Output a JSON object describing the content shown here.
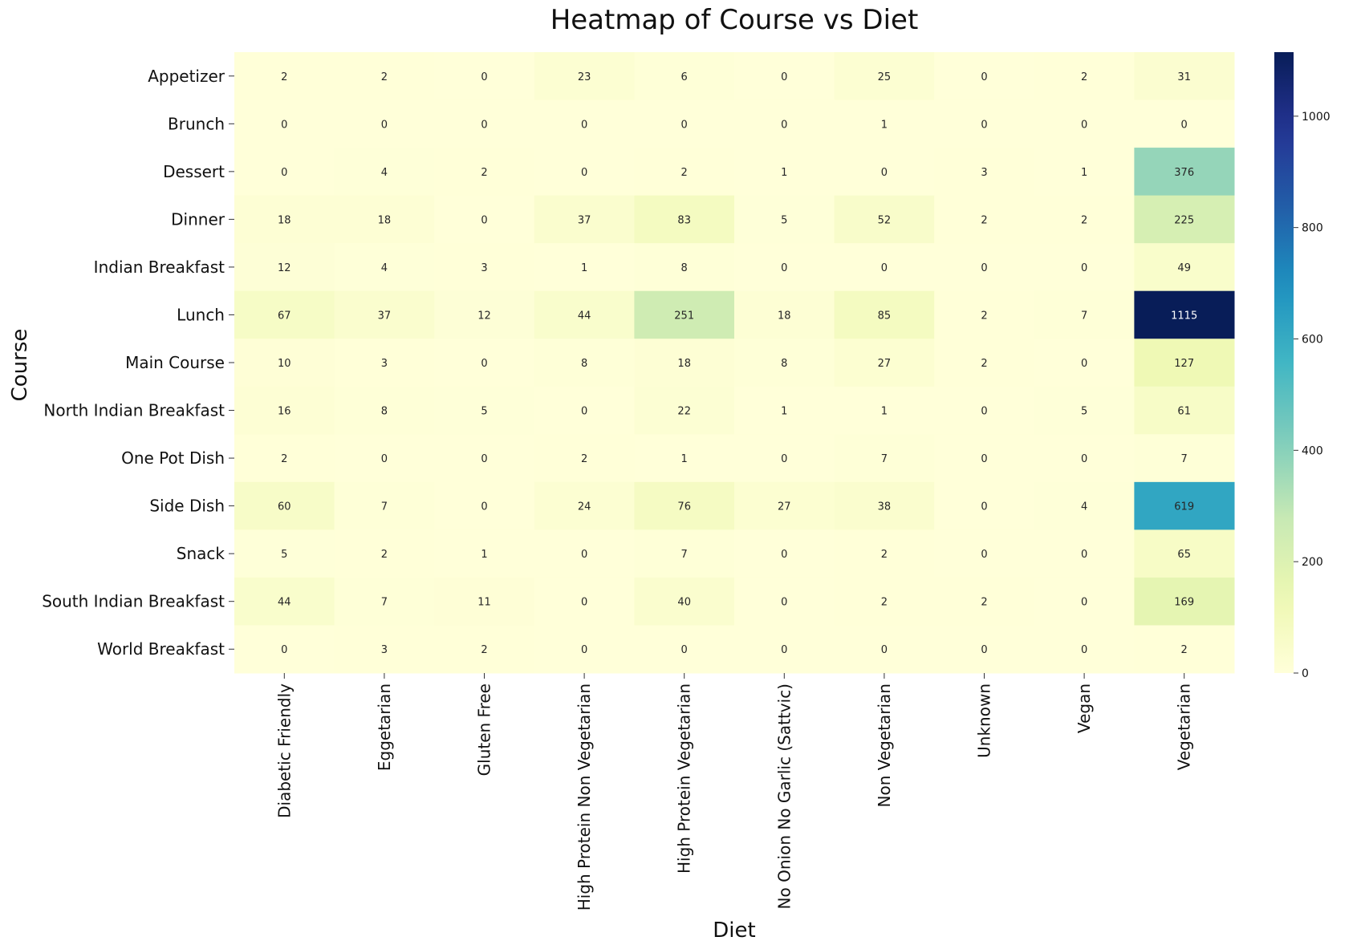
{
  "chart_data": {
    "type": "heatmap",
    "title": "Heatmap of Course vs Diet",
    "xlabel": "Diet",
    "ylabel": "Course",
    "x_categories": [
      "Diabetic Friendly",
      "Eggetarian",
      "Gluten Free",
      "High Protein Non Vegetarian",
      "High Protein Vegetarian",
      "No Onion No Garlic (Sattvic)",
      "Non Vegetarian",
      "Unknown",
      "Vegan",
      "Vegetarian"
    ],
    "y_categories": [
      "Appetizer",
      "Brunch",
      "Dessert",
      "Dinner",
      "Indian Breakfast",
      "Lunch",
      "Main Course",
      "North Indian Breakfast",
      "One Pot Dish",
      "Side Dish",
      "Snack",
      "South Indian Breakfast",
      "World Breakfast"
    ],
    "values": [
      [
        2,
        2,
        0,
        23,
        6,
        0,
        25,
        0,
        2,
        31
      ],
      [
        0,
        0,
        0,
        0,
        0,
        0,
        1,
        0,
        0,
        0
      ],
      [
        0,
        4,
        2,
        0,
        2,
        1,
        0,
        3,
        1,
        376
      ],
      [
        18,
        18,
        0,
        37,
        83,
        5,
        52,
        2,
        2,
        225
      ],
      [
        12,
        4,
        3,
        1,
        8,
        0,
        0,
        0,
        0,
        49
      ],
      [
        67,
        37,
        12,
        44,
        251,
        18,
        85,
        2,
        7,
        1115
      ],
      [
        10,
        3,
        0,
        8,
        18,
        8,
        27,
        2,
        0,
        127
      ],
      [
        16,
        8,
        5,
        0,
        22,
        1,
        1,
        0,
        5,
        61
      ],
      [
        2,
        0,
        0,
        2,
        1,
        0,
        7,
        0,
        0,
        7
      ],
      [
        60,
        7,
        0,
        24,
        76,
        27,
        38,
        0,
        4,
        619
      ],
      [
        5,
        2,
        1,
        0,
        7,
        0,
        2,
        0,
        0,
        65
      ],
      [
        44,
        7,
        11,
        0,
        40,
        0,
        2,
        2,
        0,
        169
      ],
      [
        0,
        3,
        2,
        0,
        0,
        0,
        0,
        0,
        0,
        2
      ]
    ],
    "colorscale": "YlGnBu",
    "colorbar_range": [
      0,
      1115
    ],
    "colorbar_ticks": [
      0,
      200,
      400,
      600,
      800,
      1000
    ],
    "annotations": true,
    "grid": false
  }
}
